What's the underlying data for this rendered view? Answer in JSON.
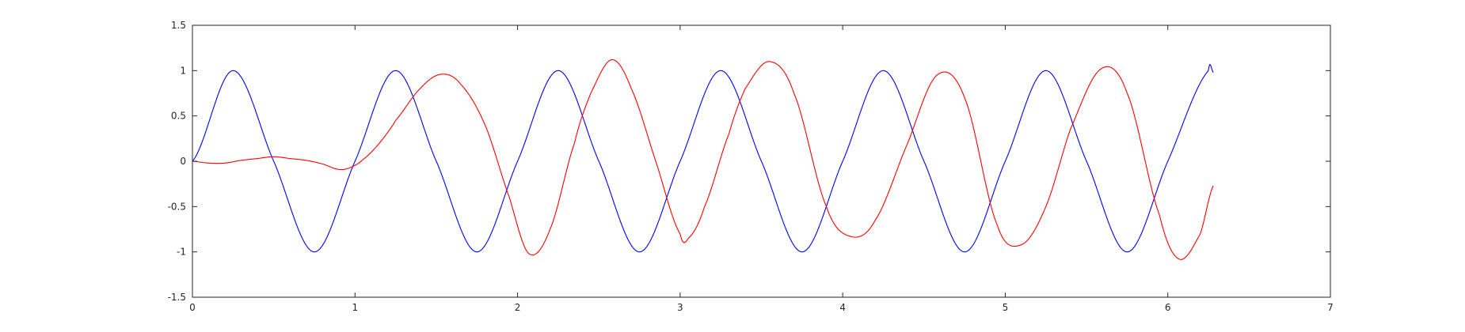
{
  "chart_data": {
    "type": "line",
    "title": "",
    "xlabel": "",
    "ylabel": "",
    "xlim": [
      0,
      7
    ],
    "ylim": [
      -1.5,
      1.5
    ],
    "grid": false,
    "x_ticks": [
      0,
      1,
      2,
      3,
      4,
      5,
      6,
      7
    ],
    "y_ticks": [
      -1.5,
      -1,
      -0.5,
      0,
      0.5,
      1,
      1.5
    ],
    "x_tick_labels": [
      "0",
      "1",
      "2",
      "3",
      "4",
      "5",
      "6",
      "7"
    ],
    "y_tick_labels": [
      "-1.5",
      "-1",
      "-0.5",
      "0",
      "0.5",
      "1",
      "1.5"
    ],
    "series": [
      {
        "color": "#0000ff",
        "x": [
          0,
          0.25,
          0.5,
          0.75,
          1.0,
          1.25,
          1.5,
          1.75,
          2.0,
          2.25,
          2.5,
          2.75,
          3.0,
          3.25,
          3.5,
          3.75,
          4.0,
          4.25,
          4.5,
          4.75,
          5.0,
          5.25,
          5.5,
          5.75,
          6.0,
          6.25,
          6.28
        ],
        "y": [
          0,
          1,
          0,
          -1,
          0,
          1,
          0,
          -1,
          0,
          1,
          0,
          -1,
          0,
          1,
          0,
          -1,
          0,
          1,
          0,
          -1,
          0,
          1,
          0,
          -1,
          0,
          1,
          0.98
        ]
      },
      {
        "color": "#ff0000",
        "x": [
          0,
          0.1,
          0.2,
          0.3,
          0.4,
          0.5,
          0.6,
          0.7,
          0.8,
          0.9,
          0.97,
          1.05,
          1.15,
          1.25,
          1.4,
          1.53,
          1.65,
          1.8,
          1.95,
          2.07,
          2.2,
          2.35,
          2.45,
          2.58,
          2.7,
          2.85,
          3.0,
          3.05,
          3.15,
          3.3,
          3.4,
          3.55,
          3.7,
          3.9,
          4.05,
          4.2,
          4.4,
          4.58,
          4.75,
          4.95,
          5.1,
          5.25,
          5.4,
          5.59,
          5.75,
          5.95,
          6.07,
          6.2,
          6.28
        ],
        "y": [
          0,
          -0.02,
          -0.02,
          0.01,
          0.03,
          0.05,
          0.03,
          0.01,
          -0.03,
          -0.09,
          -0.07,
          0.02,
          0.2,
          0.45,
          0.8,
          0.96,
          0.85,
          0.4,
          -0.4,
          -1.02,
          -0.75,
          0.2,
          0.75,
          1.12,
          0.8,
          0.0,
          -0.8,
          -0.85,
          -0.5,
          0.3,
          0.8,
          1.1,
          0.75,
          -0.5,
          -0.83,
          -0.65,
          0.2,
          0.95,
          0.7,
          -0.7,
          -0.92,
          -0.5,
          0.35,
          1.02,
          0.75,
          -0.6,
          -1.08,
          -0.8,
          -0.27
        ]
      }
    ]
  }
}
